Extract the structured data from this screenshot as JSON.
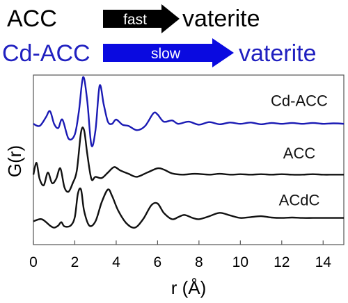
{
  "scheme": {
    "row1": {
      "from": "ACC",
      "arrow_label": "fast",
      "to": "vaterite",
      "text_color": "#000000",
      "arrow_color": "#000000",
      "arrow_text_color": "#ffffff"
    },
    "row2": {
      "from": "Cd-ACC",
      "arrow_label": "slow",
      "to": "vaterite",
      "text_color": "#2020c0",
      "arrow_color": "#0a0ae0",
      "arrow_text_color": "#ffffff"
    }
  },
  "chart_data": {
    "type": "line",
    "xlabel": "r (Å)",
    "ylabel": "G(r)",
    "xlim": [
      0,
      15
    ],
    "xticks": [
      "0",
      "2",
      "4",
      "6",
      "8",
      "10",
      "12",
      "14"
    ],
    "yticks": [],
    "grid": false,
    "legend": "labels placed next to each curve",
    "series": [
      {
        "name": "Cd-ACC",
        "color": "#1a1ab4",
        "offset": 2.3,
        "x": [
          0,
          0.3,
          0.6,
          0.8,
          1.0,
          1.2,
          1.4,
          1.7,
          2.0,
          2.2,
          2.4,
          2.6,
          2.8,
          3.0,
          3.2,
          3.4,
          3.6,
          3.8,
          4.0,
          4.3,
          4.6,
          5.0,
          5.4,
          5.8,
          6.0,
          6.3,
          6.7,
          7.0,
          7.5,
          8.0,
          8.5,
          9.0,
          9.5,
          10.0,
          10.5,
          11.0,
          11.5,
          12.0,
          12.5,
          13.0,
          13.5,
          14.0,
          14.5,
          15.0
        ],
        "y": [
          0.0,
          -0.05,
          0.15,
          0.3,
          0.0,
          -0.1,
          0.1,
          -0.35,
          -0.25,
          0.3,
          1.1,
          0.55,
          -0.5,
          -0.15,
          0.9,
          0.45,
          0.05,
          0.0,
          0.1,
          -0.02,
          -0.05,
          -0.15,
          -0.05,
          0.25,
          0.22,
          0.05,
          0.08,
          0.0,
          0.05,
          -0.02,
          0.04,
          -0.01,
          0.03,
          0.0,
          0.03,
          -0.01,
          0.02,
          0.0,
          0.02,
          0.0,
          0.02,
          0.0,
          0.01,
          0.0
        ]
      },
      {
        "name": "ACC",
        "color": "#111111",
        "offset": 1.1,
        "x": [
          0,
          0.15,
          0.3,
          0.5,
          0.7,
          0.9,
          1.1,
          1.3,
          1.5,
          1.7,
          1.9,
          2.1,
          2.3,
          2.45,
          2.6,
          2.8,
          3.0,
          3.3,
          3.6,
          3.9,
          4.2,
          4.6,
          5.0,
          5.5,
          6.0,
          6.3,
          6.7,
          7.2,
          7.8,
          8.5,
          9.0,
          9.5,
          10.0,
          10.5,
          11.0,
          11.5,
          12.0,
          12.5,
          13.0,
          13.5,
          14.0,
          14.5,
          15.0
        ],
        "y": [
          0.0,
          0.28,
          -0.1,
          -0.25,
          0.05,
          -0.2,
          -0.1,
          0.15,
          -0.3,
          -0.4,
          -0.2,
          0.1,
          1.0,
          1.05,
          0.5,
          -0.1,
          -0.05,
          -0.08,
          0.05,
          0.18,
          0.1,
          0.02,
          -0.05,
          0.05,
          0.15,
          0.12,
          0.03,
          0.0,
          0.02,
          0.0,
          0.02,
          0.0,
          0.01,
          0.0,
          0.01,
          0.0,
          0.01,
          0.0,
          0.0,
          0.01,
          0.0,
          0.0,
          0.0
        ]
      },
      {
        "name": "ACdC",
        "color": "#111111",
        "offset": 0.0,
        "x": [
          0,
          0.4,
          0.8,
          1.0,
          1.2,
          1.35,
          1.5,
          1.8,
          2.0,
          2.15,
          2.3,
          2.45,
          2.7,
          3.0,
          3.3,
          3.6,
          3.8,
          4.1,
          4.5,
          4.9,
          5.3,
          5.7,
          6.0,
          6.3,
          6.7,
          7.0,
          7.3,
          7.7,
          8.0,
          8.5,
          9.0,
          9.5,
          10.0,
          10.5,
          11.0,
          11.5,
          12.0,
          12.5,
          13.0,
          13.5,
          14.0,
          14.5,
          15.0
        ],
        "y": [
          0.0,
          0.05,
          -0.1,
          -0.15,
          -0.1,
          -0.02,
          -0.12,
          -0.1,
          0.1,
          0.65,
          0.75,
          0.25,
          -0.1,
          0.0,
          0.45,
          0.75,
          0.6,
          0.25,
          -0.05,
          -0.15,
          0.05,
          0.38,
          0.42,
          0.2,
          0.05,
          0.1,
          0.15,
          0.08,
          0.05,
          0.12,
          0.2,
          0.14,
          0.08,
          0.1,
          0.12,
          0.09,
          0.08,
          0.09,
          0.08,
          0.08,
          0.08,
          0.08,
          0.08
        ]
      }
    ]
  }
}
